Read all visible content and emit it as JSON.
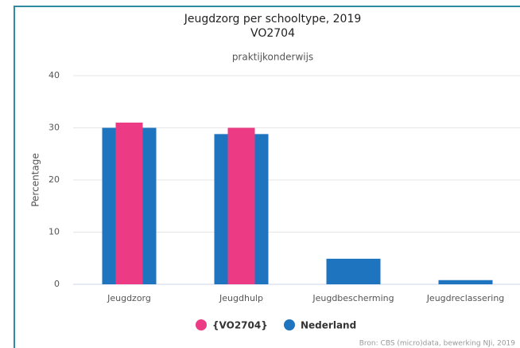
{
  "chart_data": {
    "type": "bar",
    "title": "Jeugdzorg per schooltype, 2019",
    "subtitle_line": "VO2704",
    "subtitle": "praktijkonderwijs",
    "ylabel": "Percentage",
    "categories": [
      "Jeugdzorg",
      "Jeugdhulp",
      "Jeugdbescherming",
      "Jeugdreclassering"
    ],
    "series": [
      {
        "name": "Nederland",
        "color": "#1f74c0",
        "values": [
          30,
          28.8,
          4.9,
          0.8
        ]
      },
      {
        "name": "{VO2704}",
        "color": "#ec3a84",
        "values": [
          31,
          30,
          null,
          null
        ]
      }
    ],
    "ylim": [
      0,
      40
    ],
    "yticks": [
      0,
      10,
      20,
      30,
      40
    ],
    "grid": true,
    "source": "Bron: CBS (micro)data, bewerking NJi, 2019"
  }
}
